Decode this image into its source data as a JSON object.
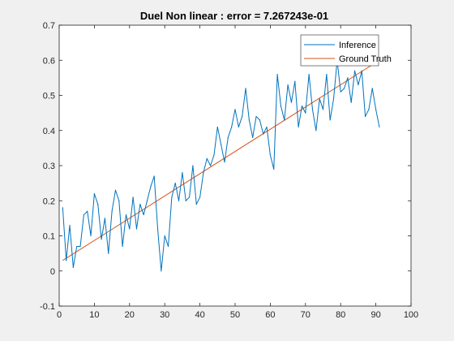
{
  "colors": {
    "figure_bg": "#f0f0f0",
    "axes_bg": "#ffffff",
    "axis": "#262626",
    "inference": "#0072bd",
    "ground_truth": "#d95319"
  },
  "chart_data": {
    "type": "line",
    "title": "Duel Non linear : error = 7.267243e-01",
    "xlabel": "",
    "ylabel": "",
    "xlim": [
      0,
      100
    ],
    "ylim": [
      -0.1,
      0.7
    ],
    "xticks": [
      0,
      10,
      20,
      30,
      40,
      50,
      60,
      70,
      80,
      90,
      100
    ],
    "yticks": [
      -0.1,
      0,
      0.1,
      0.2,
      0.3,
      0.4,
      0.5,
      0.6,
      0.7
    ],
    "grid": false,
    "legend_position": "top-right",
    "series": [
      {
        "name": "Inference",
        "x": [
          1,
          2,
          3,
          4,
          5,
          6,
          7,
          8,
          9,
          10,
          11,
          12,
          13,
          14,
          15,
          16,
          17,
          18,
          19,
          20,
          21,
          22,
          23,
          24,
          25,
          26,
          27,
          28,
          29,
          30,
          31,
          32,
          33,
          34,
          35,
          36,
          37,
          38,
          39,
          40,
          41,
          42,
          43,
          44,
          45,
          46,
          47,
          48,
          49,
          50,
          51,
          52,
          53,
          54,
          55,
          56,
          57,
          58,
          59,
          60,
          61,
          62,
          63,
          64,
          65,
          66,
          67,
          68,
          69,
          70,
          71,
          72,
          73,
          74,
          75,
          76,
          77,
          78,
          79,
          80,
          81,
          82,
          83,
          84,
          85,
          86,
          87,
          88,
          89,
          90,
          91
        ],
        "y": [
          0.18,
          0.03,
          0.13,
          0.01,
          0.07,
          0.07,
          0.16,
          0.17,
          0.1,
          0.22,
          0.19,
          0.09,
          0.15,
          0.05,
          0.17,
          0.23,
          0.2,
          0.07,
          0.16,
          0.12,
          0.21,
          0.12,
          0.19,
          0.16,
          0.2,
          0.24,
          0.27,
          0.12,
          0.0,
          0.1,
          0.07,
          0.21,
          0.25,
          0.2,
          0.28,
          0.2,
          0.21,
          0.3,
          0.19,
          0.21,
          0.28,
          0.32,
          0.3,
          0.33,
          0.41,
          0.36,
          0.31,
          0.38,
          0.41,
          0.46,
          0.41,
          0.44,
          0.52,
          0.43,
          0.38,
          0.44,
          0.43,
          0.39,
          0.41,
          0.33,
          0.29,
          0.56,
          0.47,
          0.43,
          0.53,
          0.48,
          0.54,
          0.41,
          0.47,
          0.45,
          0.56,
          0.46,
          0.4,
          0.49,
          0.46,
          0.56,
          0.43,
          0.49,
          0.6,
          0.51,
          0.52,
          0.55,
          0.48,
          0.57,
          0.53,
          0.57,
          0.44,
          0.46,
          0.52,
          0.46,
          0.41
        ]
      },
      {
        "name": "Ground Truth",
        "x": [
          1,
          91
        ],
        "y": [
          0.03,
          0.6
        ]
      }
    ]
  }
}
